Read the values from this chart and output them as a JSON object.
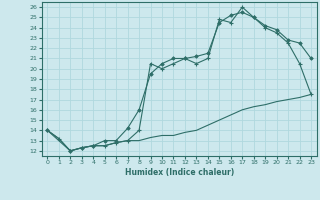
{
  "xlabel": "Humidex (Indice chaleur)",
  "xlim": [
    -0.5,
    23.5
  ],
  "ylim": [
    11.5,
    26.5
  ],
  "xticks": [
    0,
    1,
    2,
    3,
    4,
    5,
    6,
    7,
    8,
    9,
    10,
    11,
    12,
    13,
    14,
    15,
    16,
    17,
    18,
    19,
    20,
    21,
    22,
    23
  ],
  "yticks": [
    12,
    13,
    14,
    15,
    16,
    17,
    18,
    19,
    20,
    21,
    22,
    23,
    24,
    25,
    26
  ],
  "background_color": "#cde8ed",
  "grid_color": "#b0d8de",
  "line_color": "#2e6e68",
  "line1_x": [
    0,
    1,
    2,
    3,
    4,
    5,
    6,
    7,
    8,
    9,
    10,
    11,
    12,
    13,
    14,
    15,
    16,
    17,
    18,
    19,
    20,
    21,
    22,
    23
  ],
  "line1_y": [
    14.0,
    13.2,
    12.0,
    12.3,
    12.5,
    12.5,
    12.8,
    13.0,
    13.0,
    13.3,
    13.5,
    13.5,
    13.8,
    14.0,
    14.5,
    15.0,
    15.5,
    16.0,
    16.3,
    16.5,
    16.8,
    17.0,
    17.2,
    17.5
  ],
  "line2_x": [
    0,
    1,
    2,
    3,
    4,
    5,
    6,
    7,
    8,
    9,
    10,
    11,
    12,
    13,
    14,
    15,
    16,
    17,
    18,
    19,
    20,
    21,
    22,
    23
  ],
  "line2_y": [
    14.0,
    13.2,
    12.0,
    12.3,
    12.5,
    12.5,
    12.8,
    13.0,
    14.0,
    20.5,
    20.0,
    20.5,
    21.0,
    20.5,
    21.0,
    24.8,
    24.5,
    26.0,
    25.0,
    24.0,
    23.5,
    22.5,
    20.5,
    17.5
  ],
  "line3_x": [
    0,
    2,
    3,
    4,
    5,
    6,
    7,
    8,
    9,
    10,
    11,
    12,
    13,
    14,
    15,
    16,
    17,
    18,
    19,
    20,
    21,
    22,
    23
  ],
  "line3_y": [
    14.0,
    12.0,
    12.3,
    12.5,
    13.0,
    13.0,
    14.2,
    16.0,
    19.5,
    20.5,
    21.0,
    21.0,
    21.2,
    21.5,
    24.5,
    25.2,
    25.5,
    25.0,
    24.2,
    23.8,
    22.8,
    22.5,
    21.0
  ]
}
